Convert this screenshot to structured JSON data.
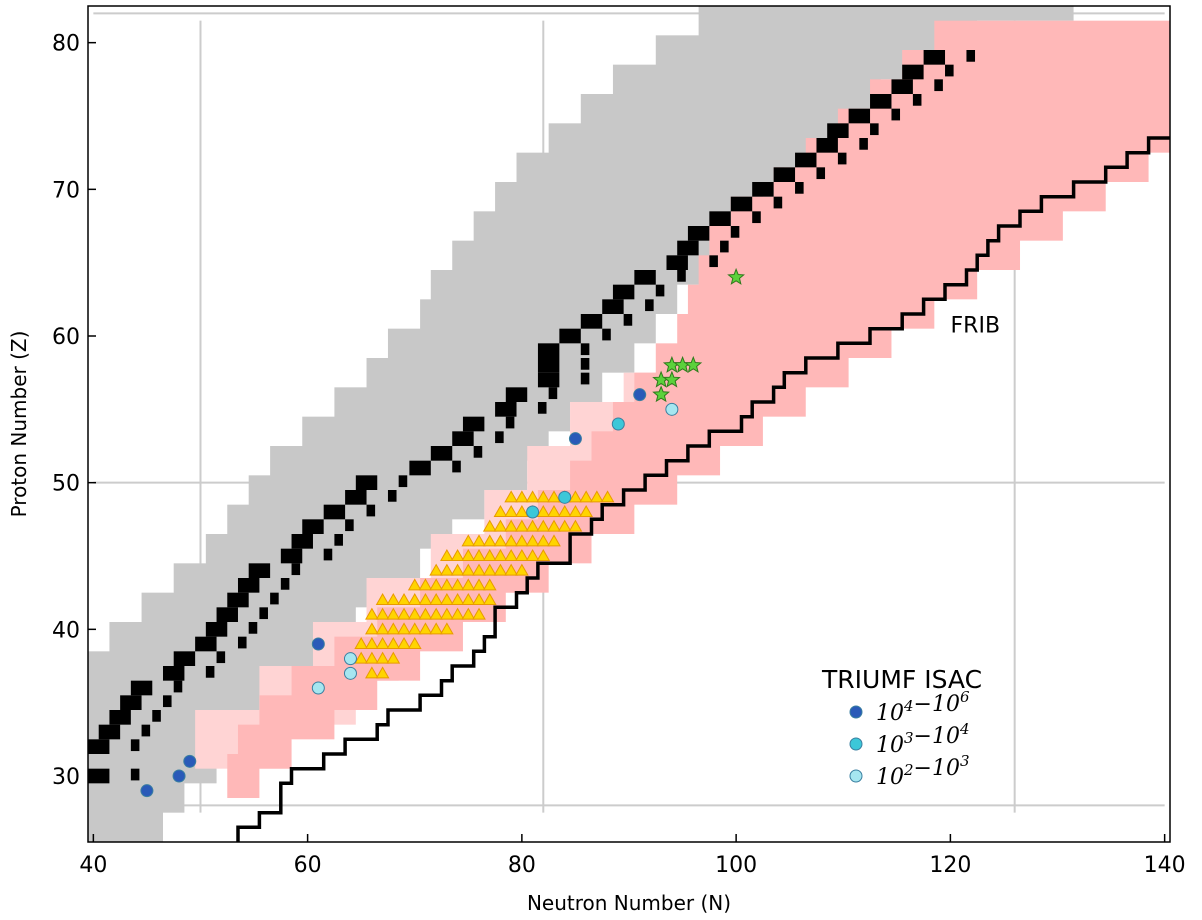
{
  "chart_data": {
    "type": "scatter",
    "xlabel": "Neutron Number (N)",
    "ylabel": "Proton Number (Z)",
    "xlim": [
      39.5,
      140.5
    ],
    "ylim": [
      25.5,
      82.5
    ],
    "xticks": [
      40,
      60,
      80,
      100,
      120,
      140
    ],
    "yticks": [
      30,
      40,
      50,
      60,
      70,
      80
    ],
    "grid_vertical": [
      50,
      82,
      126
    ],
    "grid_horizontal": [
      28,
      50,
      82
    ],
    "region_label": {
      "text": "FRIB",
      "x": 123,
      "y": 60.5
    },
    "colors": {
      "known": "#c8c8c8",
      "stable": "#000000",
      "frib": "#ffb8b8",
      "frib_light": "#ffd4d4",
      "triangle_fill": "#ffd400",
      "triangle_edge": "#e89a00",
      "star": "#5bd13b",
      "isac_high": "#2a5ab8",
      "isac_mid": "#3cc7d8",
      "isac_low": "#a6e6f0",
      "grid": "#cccccc"
    },
    "known_band": [
      {
        "z": 26,
        "n": [
          39,
          46
        ]
      },
      {
        "z": 28,
        "n": [
          39,
          48
        ]
      },
      {
        "z": 30,
        "n": [
          39,
          51
        ]
      },
      {
        "z": 32,
        "n": [
          39,
          53
        ]
      },
      {
        "z": 34,
        "n": [
          39,
          55
        ]
      },
      {
        "z": 36,
        "n": [
          39,
          58
        ]
      },
      {
        "z": 38,
        "n": [
          42,
          61
        ]
      },
      {
        "z": 40,
        "n": [
          45,
          64
        ]
      },
      {
        "z": 42,
        "n": [
          48,
          67
        ]
      },
      {
        "z": 44,
        "n": [
          51,
          70
        ]
      },
      {
        "z": 46,
        "n": [
          53,
          73
        ]
      },
      {
        "z": 48,
        "n": [
          55,
          76
        ]
      },
      {
        "z": 50,
        "n": [
          57,
          80
        ]
      },
      {
        "z": 52,
        "n": [
          60,
          82
        ]
      },
      {
        "z": 54,
        "n": [
          63,
          84
        ]
      },
      {
        "z": 56,
        "n": [
          66,
          87
        ]
      },
      {
        "z": 58,
        "n": [
          68,
          90
        ]
      },
      {
        "z": 60,
        "n": [
          71,
          92
        ]
      },
      {
        "z": 62,
        "n": [
          72,
          94
        ]
      },
      {
        "z": 64,
        "n": [
          74,
          97
        ]
      },
      {
        "z": 66,
        "n": [
          76,
          99
        ]
      },
      {
        "z": 68,
        "n": [
          78,
          102
        ]
      },
      {
        "z": 70,
        "n": [
          80,
          104
        ]
      },
      {
        "z": 72,
        "n": [
          83,
          107
        ]
      },
      {
        "z": 74,
        "n": [
          86,
          110
        ]
      },
      {
        "z": 76,
        "n": [
          89,
          113
        ]
      },
      {
        "z": 78,
        "n": [
          93,
          116
        ]
      },
      {
        "z": 80,
        "n": [
          97,
          122
        ]
      },
      {
        "z": 82,
        "n": [
          102,
          131
        ]
      }
    ],
    "frib_band": [
      {
        "z": 29,
        "n": [
          53,
          55
        ]
      },
      {
        "z": 31,
        "n": [
          54,
          58
        ]
      },
      {
        "z": 33,
        "n": [
          56,
          62
        ]
      },
      {
        "z": 35,
        "n": [
          59,
          66
        ]
      },
      {
        "z": 37,
        "n": [
          63,
          70
        ]
      },
      {
        "z": 39,
        "n": [
          67,
          74
        ]
      },
      {
        "z": 41,
        "n": [
          71,
          78
        ]
      },
      {
        "z": 43,
        "n": [
          75,
          82
        ]
      },
      {
        "z": 45,
        "n": [
          79,
          86
        ]
      },
      {
        "z": 47,
        "n": [
          82,
          90
        ]
      },
      {
        "z": 49,
        "n": [
          85,
          94
        ]
      },
      {
        "z": 51,
        "n": [
          87,
          98
        ]
      },
      {
        "z": 53,
        "n": [
          89,
          102
        ]
      },
      {
        "z": 55,
        "n": [
          91,
          106
        ]
      },
      {
        "z": 57,
        "n": [
          93,
          110
        ]
      },
      {
        "z": 59,
        "n": [
          95,
          114
        ]
      },
      {
        "z": 61,
        "n": [
          96,
          118
        ]
      },
      {
        "z": 63,
        "n": [
          97,
          122
        ]
      },
      {
        "z": 65,
        "n": [
          98,
          126
        ]
      },
      {
        "z": 67,
        "n": [
          100,
          130
        ]
      },
      {
        "z": 69,
        "n": [
          104,
          134
        ]
      },
      {
        "z": 71,
        "n": [
          107,
          138
        ]
      },
      {
        "z": 73,
        "n": [
          110,
          140
        ]
      },
      {
        "z": 75,
        "n": [
          113,
          140
        ]
      },
      {
        "z": 77,
        "n": [
          116,
          140
        ]
      },
      {
        "z": 79,
        "n": [
          119,
          140
        ]
      }
    ],
    "frib_light_band": [
      {
        "z": 31,
        "n": [
          50,
          58
        ]
      },
      {
        "z": 34,
        "n": [
          56,
          64
        ]
      },
      {
        "z": 37,
        "n": [
          61,
          68
        ]
      },
      {
        "z": 40,
        "n": [
          66,
          73
        ]
      },
      {
        "z": 43,
        "n": [
          72,
          80
        ]
      },
      {
        "z": 46,
        "n": [
          77,
          85
        ]
      },
      {
        "z": 49,
        "n": [
          81,
          90
        ]
      },
      {
        "z": 52,
        "n": [
          85,
          95
        ]
      },
      {
        "z": 55,
        "n": [
          90,
          97
        ]
      }
    ],
    "stable_valley": [
      {
        "z": 30,
        "n": 40
      },
      {
        "z": 32,
        "n": 40
      },
      {
        "z": 33,
        "n": 41
      },
      {
        "z": 34,
        "n": 42
      },
      {
        "z": 35,
        "n": 43
      },
      {
        "z": 36,
        "n": 44
      },
      {
        "z": 37,
        "n": 47
      },
      {
        "z": 38,
        "n": 48
      },
      {
        "z": 39,
        "n": 50
      },
      {
        "z": 40,
        "n": 51
      },
      {
        "z": 41,
        "n": 52
      },
      {
        "z": 42,
        "n": 53
      },
      {
        "z": 43,
        "n": 54
      },
      {
        "z": 44,
        "n": 55
      },
      {
        "z": 45,
        "n": 58
      },
      {
        "z": 46,
        "n": 59
      },
      {
        "z": 47,
        "n": 60
      },
      {
        "z": 48,
        "n": 62
      },
      {
        "z": 49,
        "n": 64
      },
      {
        "z": 50,
        "n": 65
      },
      {
        "z": 51,
        "n": 70
      },
      {
        "z": 52,
        "n": 72
      },
      {
        "z": 53,
        "n": 74
      },
      {
        "z": 54,
        "n": 75
      },
      {
        "z": 55,
        "n": 78
      },
      {
        "z": 56,
        "n": 79
      },
      {
        "z": 57,
        "n": 82
      },
      {
        "z": 58,
        "n": 82
      },
      {
        "z": 59,
        "n": 82
      },
      {
        "z": 60,
        "n": 84
      },
      {
        "z": 61,
        "n": 86
      },
      {
        "z": 62,
        "n": 88
      },
      {
        "z": 63,
        "n": 89
      },
      {
        "z": 64,
        "n": 91
      },
      {
        "z": 65,
        "n": 94
      },
      {
        "z": 66,
        "n": 95
      },
      {
        "z": 67,
        "n": 96
      },
      {
        "z": 68,
        "n": 98
      },
      {
        "z": 69,
        "n": 100
      },
      {
        "z": 70,
        "n": 102
      },
      {
        "z": 71,
        "n": 104
      },
      {
        "z": 72,
        "n": 106
      },
      {
        "z": 73,
        "n": 108
      },
      {
        "z": 74,
        "n": 109
      },
      {
        "z": 75,
        "n": 111
      },
      {
        "z": 76,
        "n": 113
      },
      {
        "z": 77,
        "n": 115
      },
      {
        "z": 78,
        "n": 116
      },
      {
        "z": 79,
        "n": 118
      }
    ],
    "drip_line": [
      [
        53.5,
        25.5
      ],
      [
        53.5,
        26.5
      ],
      [
        55.5,
        26.5
      ],
      [
        55.5,
        27.5
      ],
      [
        57.5,
        27.5
      ],
      [
        57.5,
        29.5
      ],
      [
        58.5,
        29.5
      ],
      [
        58.5,
        30.5
      ],
      [
        61.5,
        30.5
      ],
      [
        61.5,
        31.5
      ],
      [
        63.5,
        31.5
      ],
      [
        63.5,
        32.5
      ],
      [
        66.5,
        32.5
      ],
      [
        66.5,
        33.5
      ],
      [
        67.5,
        33.5
      ],
      [
        67.5,
        34.5
      ],
      [
        70.5,
        34.5
      ],
      [
        70.5,
        35.5
      ],
      [
        72.5,
        35.5
      ],
      [
        72.5,
        36.5
      ],
      [
        73.5,
        36.5
      ],
      [
        73.5,
        37.5
      ],
      [
        75.5,
        37.5
      ],
      [
        75.5,
        38.5
      ],
      [
        76.5,
        38.5
      ],
      [
        76.5,
        39.5
      ],
      [
        77.5,
        39.5
      ],
      [
        77.5,
        41.5
      ],
      [
        79.5,
        41.5
      ],
      [
        79.5,
        42.5
      ],
      [
        80.5,
        42.5
      ],
      [
        80.5,
        43.5
      ],
      [
        81.5,
        43.5
      ],
      [
        81.5,
        44.5
      ],
      [
        84.5,
        44.5
      ],
      [
        84.5,
        46.5
      ],
      [
        86.5,
        46.5
      ],
      [
        86.5,
        47.5
      ],
      [
        87.5,
        47.5
      ],
      [
        87.5,
        48.5
      ],
      [
        89.5,
        48.5
      ],
      [
        89.5,
        49.5
      ],
      [
        91.5,
        49.5
      ],
      [
        91.5,
        50.5
      ],
      [
        93.5,
        50.5
      ],
      [
        93.5,
        51.5
      ],
      [
        95.5,
        51.5
      ],
      [
        95.5,
        52.5
      ],
      [
        97.5,
        52.5
      ],
      [
        97.5,
        53.5
      ],
      [
        100.5,
        53.5
      ],
      [
        100.5,
        54.5
      ],
      [
        101.5,
        54.5
      ],
      [
        101.5,
        55.5
      ],
      [
        103.5,
        55.5
      ],
      [
        103.5,
        56.5
      ],
      [
        104.5,
        56.5
      ],
      [
        104.5,
        57.5
      ],
      [
        106.5,
        57.5
      ],
      [
        106.5,
        58.5
      ],
      [
        109.5,
        58.5
      ],
      [
        109.5,
        59.5
      ],
      [
        112.5,
        59.5
      ],
      [
        112.5,
        60.5
      ],
      [
        115.5,
        60.5
      ],
      [
        115.5,
        61.5
      ],
      [
        117.5,
        61.5
      ],
      [
        117.5,
        62.5
      ],
      [
        119.5,
        62.5
      ],
      [
        119.5,
        63.5
      ],
      [
        121.5,
        63.5
      ],
      [
        121.5,
        64.5
      ],
      [
        122.5,
        64.5
      ],
      [
        122.5,
        65.5
      ],
      [
        123.5,
        65.5
      ],
      [
        123.5,
        66.5
      ],
      [
        124.5,
        66.5
      ],
      [
        124.5,
        67.5
      ],
      [
        126.5,
        67.5
      ],
      [
        126.5,
        68.5
      ],
      [
        128.5,
        68.5
      ],
      [
        128.5,
        69.5
      ],
      [
        131.5,
        69.5
      ],
      [
        131.5,
        70.5
      ],
      [
        134.5,
        70.5
      ],
      [
        134.5,
        71.5
      ],
      [
        136.5,
        71.5
      ],
      [
        136.5,
        72.5
      ],
      [
        138.5,
        72.5
      ],
      [
        138.5,
        73.5
      ],
      [
        140.5,
        73.5
      ]
    ],
    "triangles": [
      {
        "z": 37,
        "n": [
          66,
          67
        ]
      },
      {
        "z": 38,
        "n": [
          65,
          68
        ]
      },
      {
        "z": 39,
        "n": [
          65,
          70
        ]
      },
      {
        "z": 40,
        "n": [
          66,
          73
        ]
      },
      {
        "z": 41,
        "n": [
          66,
          76
        ]
      },
      {
        "z": 42,
        "n": [
          67,
          77
        ]
      },
      {
        "z": 43,
        "n": [
          70,
          77
        ]
      },
      {
        "z": 44,
        "n": [
          72,
          80
        ]
      },
      {
        "z": 45,
        "n": [
          73,
          82
        ]
      },
      {
        "z": 46,
        "n": [
          75,
          83
        ]
      },
      {
        "z": 47,
        "n": [
          77,
          85
        ]
      },
      {
        "z": 48,
        "n": [
          78,
          86
        ]
      },
      {
        "z": 49,
        "n": [
          79,
          88
        ]
      }
    ],
    "stars": [
      {
        "n": 100,
        "z": 64
      },
      {
        "n": 94,
        "z": 58
      },
      {
        "n": 95,
        "z": 58
      },
      {
        "n": 96,
        "z": 58
      },
      {
        "n": 93,
        "z": 57
      },
      {
        "n": 94,
        "z": 57
      },
      {
        "n": 93,
        "z": 56
      }
    ],
    "triumf_isac": {
      "title": "TRIUMF ISAC",
      "series": [
        {
          "name": "10^4 - 10^6",
          "base1": "10",
          "exp1": "4",
          "base2": "10",
          "exp2": "6",
          "points": [
            [
              45,
              29
            ],
            [
              48,
              30
            ],
            [
              49,
              31
            ],
            [
              61,
              39
            ],
            [
              85,
              53
            ],
            [
              91,
              56
            ]
          ]
        },
        {
          "name": "10^3 - 10^4",
          "base1": "10",
          "exp1": "3",
          "base2": "10",
          "exp2": "4",
          "points": [
            [
              84,
              49
            ],
            [
              81,
              48
            ],
            [
              89,
              54
            ]
          ]
        },
        {
          "name": "10^2 - 10^3",
          "base1": "10",
          "exp1": "2",
          "base2": "10",
          "exp2": "3",
          "points": [
            [
              61,
              36
            ],
            [
              64,
              37
            ],
            [
              64,
              38
            ],
            [
              94,
              55
            ]
          ]
        }
      ]
    }
  }
}
